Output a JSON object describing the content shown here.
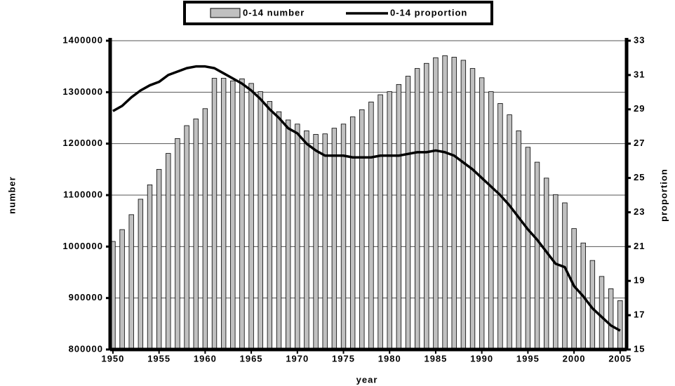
{
  "chart_data": {
    "type": "bar-line",
    "x": [
      1950,
      1951,
      1952,
      1953,
      1954,
      1955,
      1956,
      1957,
      1958,
      1959,
      1960,
      1961,
      1962,
      1963,
      1964,
      1965,
      1966,
      1967,
      1968,
      1969,
      1970,
      1971,
      1972,
      1973,
      1974,
      1975,
      1976,
      1977,
      1978,
      1979,
      1980,
      1981,
      1982,
      1983,
      1984,
      1985,
      1986,
      1987,
      1988,
      1989,
      1990,
      1991,
      1992,
      1993,
      1994,
      1995,
      1996,
      1997,
      1998,
      1999,
      2000,
      2001,
      2002,
      2003,
      2004,
      2005
    ],
    "series": [
      {
        "name": "0-14 number",
        "type": "bar",
        "color": "#c0c0c0",
        "axis": "y",
        "values": [
          1010000,
          1033000,
          1062000,
          1092000,
          1120000,
          1150000,
          1181000,
          1210000,
          1235000,
          1248000,
          1268000,
          1327000,
          1327000,
          1322000,
          1326000,
          1317000,
          1301000,
          1282000,
          1262000,
          1246000,
          1238000,
          1225000,
          1218000,
          1219000,
          1230000,
          1238000,
          1252000,
          1266000,
          1281000,
          1295000,
          1301000,
          1315000,
          1331000,
          1346000,
          1356000,
          1367000,
          1371000,
          1368000,
          1362000,
          1346000,
          1328000,
          1301000,
          1278000,
          1256000,
          1225000,
          1193000,
          1164000,
          1133000,
          1101000,
          1085000,
          1035000,
          1007000,
          973000,
          942000,
          918000,
          895000
        ]
      },
      {
        "name": "0-14 proportion",
        "type": "line",
        "color": "#000000",
        "axis": "y2",
        "values": [
          28.9,
          29.2,
          29.7,
          30.1,
          30.4,
          30.6,
          31.0,
          31.2,
          31.4,
          31.5,
          31.5,
          31.4,
          31.1,
          30.8,
          30.5,
          30.1,
          29.6,
          29.0,
          28.5,
          27.9,
          27.6,
          27.0,
          26.6,
          26.3,
          26.3,
          26.3,
          26.2,
          26.2,
          26.2,
          26.3,
          26.3,
          26.3,
          26.4,
          26.5,
          26.5,
          26.6,
          26.5,
          26.3,
          25.9,
          25.5,
          25.0,
          24.5,
          24.0,
          23.4,
          22.7,
          22.0,
          21.4,
          20.7,
          20.0,
          19.8,
          18.7,
          18.1,
          17.4,
          16.9,
          16.4,
          16.1
        ]
      }
    ],
    "x_label": "year",
    "y_label": "number",
    "y2_label": "proportion",
    "xlim": [
      1949.7,
      2005.7
    ],
    "xticks": [
      1950,
      1955,
      1960,
      1965,
      1970,
      1975,
      1980,
      1985,
      1990,
      1995,
      2000,
      2005
    ],
    "ylim": [
      800000,
      1400000
    ],
    "yticks": [
      800000,
      900000,
      1000000,
      1100000,
      1200000,
      1300000,
      1400000
    ],
    "y2lim": [
      15,
      33
    ],
    "y2ticks": [
      15,
      17,
      19,
      21,
      23,
      25,
      27,
      29,
      31,
      33
    ],
    "grid": true,
    "legend": "top"
  }
}
